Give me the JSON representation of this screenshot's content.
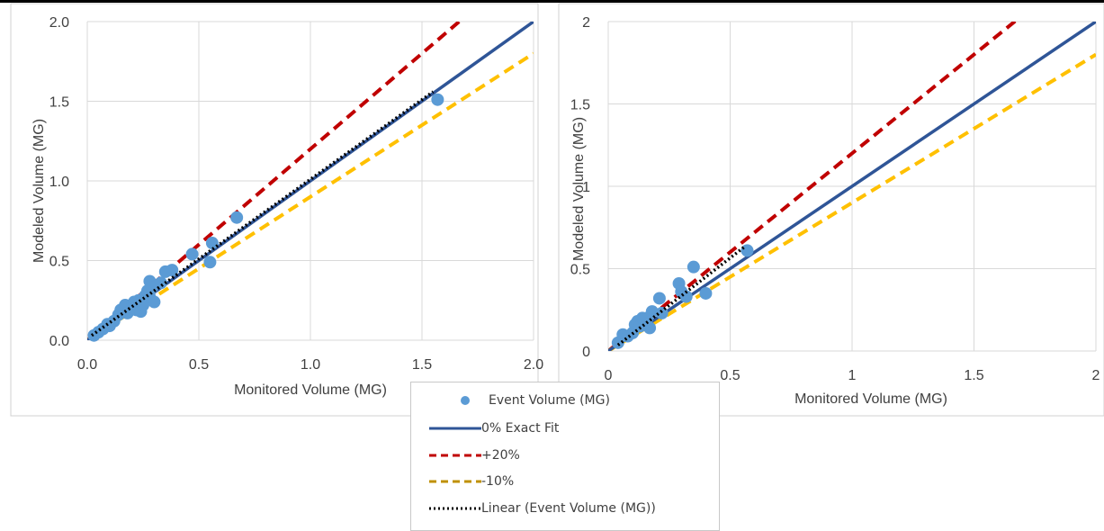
{
  "chart_data": [
    {
      "type": "scatter",
      "title": "",
      "xlabel": "Monitored Volume (MG)",
      "ylabel": "Modeled Volume (MG)",
      "xlim": [
        0,
        2
      ],
      "ylim": [
        0,
        2
      ],
      "xticks": [
        "0.0",
        "0.5",
        "1.0",
        "1.5",
        "2.0"
      ],
      "yticks": [
        "0.0",
        "0.5",
        "1.0",
        "1.5",
        "2.0"
      ],
      "grid": true,
      "points": [
        [
          0.03,
          0.03
        ],
        [
          0.05,
          0.05
        ],
        [
          0.07,
          0.07
        ],
        [
          0.09,
          0.1
        ],
        [
          0.1,
          0.09
        ],
        [
          0.12,
          0.12
        ],
        [
          0.14,
          0.16
        ],
        [
          0.15,
          0.19
        ],
        [
          0.17,
          0.22
        ],
        [
          0.18,
          0.17
        ],
        [
          0.2,
          0.21
        ],
        [
          0.21,
          0.24
        ],
        [
          0.22,
          0.19
        ],
        [
          0.23,
          0.25
        ],
        [
          0.24,
          0.18
        ],
        [
          0.25,
          0.22
        ],
        [
          0.26,
          0.28
        ],
        [
          0.27,
          0.31
        ],
        [
          0.28,
          0.27
        ],
        [
          0.28,
          0.37
        ],
        [
          0.29,
          0.33
        ],
        [
          0.3,
          0.24
        ],
        [
          0.33,
          0.36
        ],
        [
          0.35,
          0.43
        ],
        [
          0.38,
          0.44
        ],
        [
          0.47,
          0.54
        ],
        [
          0.55,
          0.49
        ],
        [
          0.56,
          0.61
        ],
        [
          0.67,
          0.77
        ],
        [
          1.57,
          1.51
        ]
      ],
      "linear_fit": {
        "slope": 1.0,
        "intercept": 0.01,
        "x_range": [
          0.02,
          1.55
        ]
      }
    },
    {
      "type": "scatter",
      "title": "",
      "xlabel": "Monitored Volume (MG)",
      "ylabel": "Modeled Volume (MG)",
      "xlim": [
        0,
        2
      ],
      "ylim": [
        0,
        2
      ],
      "xticks": [
        "0",
        "0.5",
        "1",
        "1.5",
        "2"
      ],
      "yticks": [
        "0",
        "0.5",
        "1",
        "1.5",
        "2"
      ],
      "grid": true,
      "points": [
        [
          0.04,
          0.05
        ],
        [
          0.06,
          0.1
        ],
        [
          0.08,
          0.09
        ],
        [
          0.1,
          0.11
        ],
        [
          0.11,
          0.16
        ],
        [
          0.12,
          0.18
        ],
        [
          0.13,
          0.15
        ],
        [
          0.14,
          0.2
        ],
        [
          0.16,
          0.2
        ],
        [
          0.17,
          0.14
        ],
        [
          0.18,
          0.24
        ],
        [
          0.21,
          0.32
        ],
        [
          0.22,
          0.23
        ],
        [
          0.29,
          0.41
        ],
        [
          0.3,
          0.36
        ],
        [
          0.32,
          0.33
        ],
        [
          0.35,
          0.51
        ],
        [
          0.4,
          0.35
        ],
        [
          0.57,
          0.61
        ]
      ],
      "linear_fit": {
        "slope": 1.15,
        "intercept": -0.01,
        "x_range": [
          0.04,
          0.56
        ]
      }
    }
  ],
  "series_styles": {
    "points": {
      "color": "#5b9bd5"
    },
    "exact": {
      "color": "#2f5597",
      "dash": "solid"
    },
    "plus20": {
      "color": "#c00000",
      "dash": "dashed",
      "slope": 1.2
    },
    "minus10": {
      "color": "#ffc000",
      "dash": "dashed",
      "slope": 0.9
    },
    "linear": {
      "color": "#000000",
      "dash": "dotted"
    }
  },
  "legend": {
    "items": [
      {
        "label": "Event Volume (MG)",
        "style": "points"
      },
      {
        "label": "0% Exact Fit",
        "style": "exact"
      },
      {
        "label": "+20%",
        "style": "plus20"
      },
      {
        "label": "-10%",
        "style": "minus10"
      },
      {
        "label": "Linear (Event Volume (MG))",
        "style": "linear"
      }
    ]
  }
}
